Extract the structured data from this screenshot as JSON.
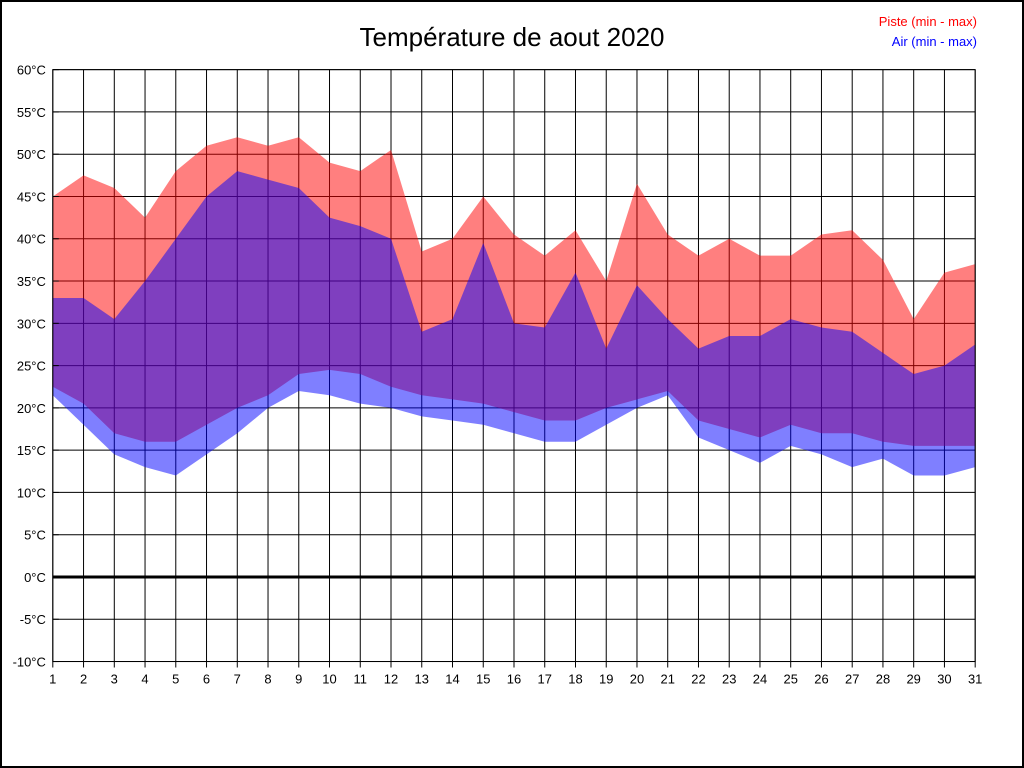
{
  "chart_data": {
    "type": "area",
    "title": "Température de aout 2020",
    "x": [
      1,
      2,
      3,
      4,
      5,
      6,
      7,
      8,
      9,
      10,
      11,
      12,
      13,
      14,
      15,
      16,
      17,
      18,
      19,
      20,
      21,
      22,
      23,
      24,
      25,
      26,
      27,
      28,
      29,
      30,
      31
    ],
    "x_tick_labels": [
      "1",
      "2",
      "3",
      "4",
      "5",
      "6",
      "7",
      "8",
      "9",
      "10",
      "11",
      "12",
      "13",
      "14",
      "15",
      "16",
      "17",
      "18",
      "19",
      "20",
      "21",
      "22",
      "23",
      "24",
      "25",
      "26",
      "27",
      "28",
      "29",
      "30",
      "31"
    ],
    "xlabel": "",
    "ylabel": "",
    "y_unit": "°C",
    "ylim": [
      -10,
      60
    ],
    "ytick_step": 5,
    "y_tick_labels": [
      "60°C",
      "55°C",
      "50°C",
      "45°C",
      "40°C",
      "35°C",
      "30°C",
      "25°C",
      "20°C",
      "15°C",
      "10°C",
      "5°C",
      "0°C",
      "-5°C",
      "-10°C"
    ],
    "y_tick_values": [
      60,
      55,
      50,
      45,
      40,
      35,
      30,
      25,
      20,
      15,
      10,
      5,
      0,
      -5,
      -10
    ],
    "grid": true,
    "zero_line_value": 0,
    "legend_position": "top-right",
    "series": [
      {
        "name": "Piste (min - max)",
        "band": "min-max",
        "color": "#ff0000",
        "opacity": 0.5,
        "max": [
          45,
          47.5,
          46,
          42.5,
          48,
          51,
          52,
          51,
          52,
          49,
          48,
          50.5,
          38.5,
          40,
          45,
          40.5,
          38,
          41,
          35,
          46.5,
          40.5,
          38,
          40,
          38,
          38,
          40.5,
          41,
          37.5,
          30.5,
          36,
          37
        ],
        "min": [
          22.5,
          20.5,
          17,
          16,
          16,
          18,
          20,
          21.5,
          24,
          24.5,
          24,
          22.5,
          21.5,
          21,
          20.5,
          19.5,
          18.5,
          18.5,
          20,
          21,
          22,
          18.5,
          17.5,
          16.5,
          18,
          17,
          17,
          16,
          15.5,
          15.5,
          15.5
        ]
      },
      {
        "name": "Air (min - max)",
        "band": "min-max",
        "color": "#0000ff",
        "opacity": 0.5,
        "max": [
          33,
          33,
          30.5,
          35,
          40,
          45,
          48,
          47,
          46,
          42.5,
          41.5,
          40,
          29,
          30.5,
          39.5,
          30,
          29.5,
          36,
          27,
          34.5,
          30.5,
          27,
          28.5,
          28.5,
          30.5,
          29.5,
          29,
          26.5,
          24,
          25,
          27.5
        ],
        "min": [
          21.5,
          18,
          14.5,
          13,
          12,
          14.5,
          17,
          20,
          22,
          21.5,
          20.5,
          20,
          19,
          18.5,
          18,
          17,
          16,
          16,
          18,
          20,
          21.5,
          16.5,
          15,
          13.5,
          15.5,
          14.5,
          13,
          14,
          12,
          12,
          13
        ]
      }
    ]
  }
}
